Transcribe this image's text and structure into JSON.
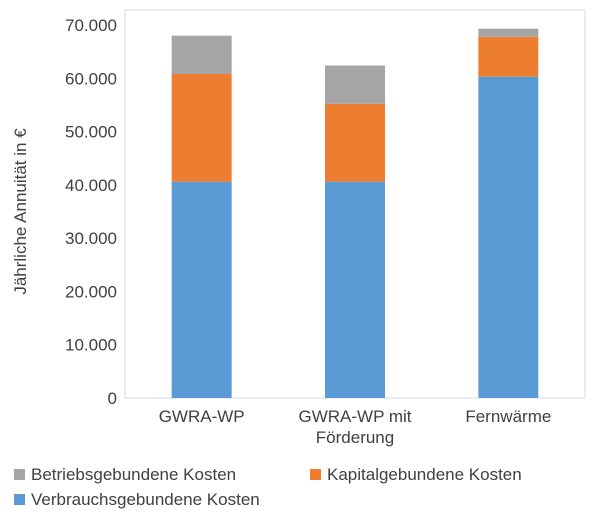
{
  "chart_data": {
    "type": "bar",
    "stacked": true,
    "categories": [
      "GWRA-WP",
      "GWRA-WP mit Förderung",
      "Fernwärme"
    ],
    "category_lines": [
      [
        "GWRA-WP"
      ],
      [
        "GWRA-WP mit",
        "Förderung"
      ],
      [
        "Fernwärme"
      ]
    ],
    "series": [
      {
        "name": "Verbrauchsgebundene Kosten",
        "color": "#5B9BD5",
        "values": [
          40600,
          40600,
          60300
        ]
      },
      {
        "name": "Kapitalgebundene Kosten",
        "color": "#ED7D31",
        "values": [
          20200,
          14600,
          7500
        ]
      },
      {
        "name": "Betriebsgebundene Kosten",
        "color": "#A5A5A5",
        "values": [
          7200,
          7200,
          1500
        ]
      }
    ],
    "ylabel": "Jährliche Annuität in €",
    "ylim": [
      0,
      70000
    ],
    "yticks": [
      0,
      10000,
      20000,
      30000,
      40000,
      50000,
      60000,
      70000
    ],
    "ytick_labels": [
      "0",
      "10.000",
      "20.000",
      "30.000",
      "40.000",
      "50.000",
      "60.000",
      "70.000"
    ],
    "legend_position": "bottom",
    "grid": false
  }
}
